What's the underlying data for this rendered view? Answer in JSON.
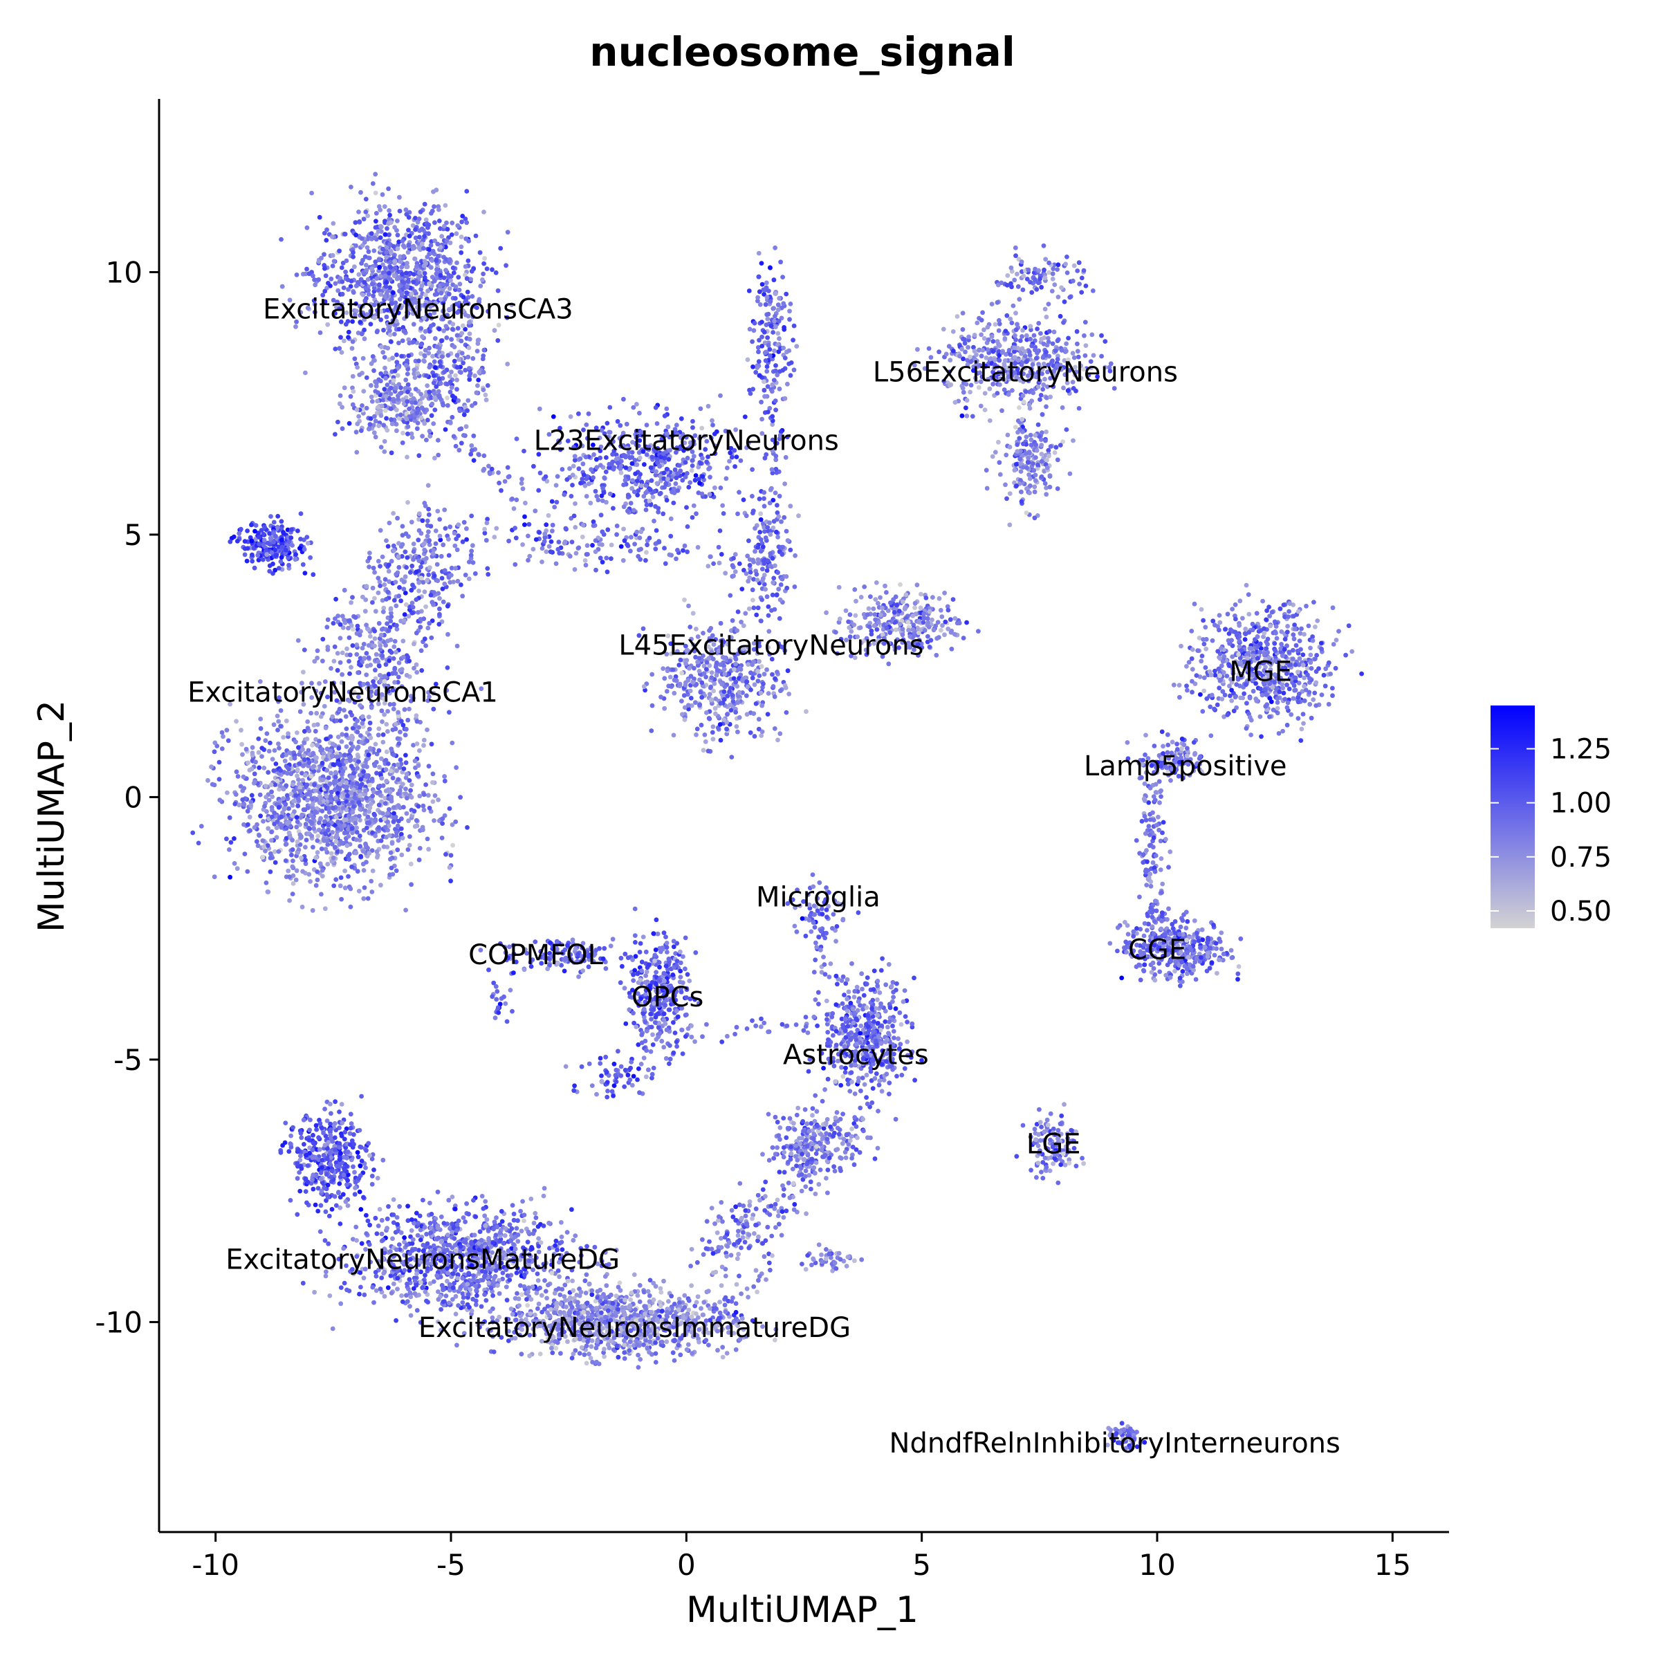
{
  "chart_data": {
    "type": "scatter",
    "title": "nucleosome_signal",
    "xlabel": "MultiUMAP_1",
    "ylabel": "MultiUMAP_2",
    "xlim": [
      -11.2,
      16.2
    ],
    "ylim": [
      -14.0,
      13.3
    ],
    "x_ticks": [
      -10,
      -5,
      0,
      5,
      10,
      15
    ],
    "y_ticks": [
      -10,
      -5,
      0,
      5,
      10
    ],
    "x_tick_labels": [
      "-10",
      "-5",
      "0",
      "5",
      "10",
      "15"
    ],
    "y_tick_labels": [
      "-10",
      "-5",
      "0",
      "5",
      "10"
    ],
    "grid": false,
    "color_scale": {
      "name": "",
      "low_color": "#d3d3d3",
      "high_color": "#0000ff",
      "min": 0.42,
      "max": 1.45,
      "ticks": [
        0.5,
        0.75,
        1.0,
        1.25
      ],
      "tick_labels": [
        "0.50",
        "0.75",
        "1.00",
        "1.25"
      ],
      "legend_position": "right"
    },
    "clusters": [
      {
        "label": "ExcitatoryNeuronsCA3",
        "label_x": -5.7,
        "label_y": 9.3,
        "blobs": [
          [
            -6.1,
            9.9,
            1.6,
            1.3,
            0.0,
            900,
            0.88
          ],
          [
            -6.2,
            7.5,
            0.9,
            0.7,
            0.0,
            250,
            0.8
          ],
          [
            -5.0,
            8.3,
            0.8,
            1.2,
            0.0,
            200,
            0.88
          ]
        ]
      },
      {
        "label": "ExcitatoryNeuronsCA1",
        "label_x": -7.3,
        "label_y": 2.0,
        "blobs": [
          [
            -7.5,
            0.0,
            1.9,
            1.4,
            0.0,
            1400,
            0.82
          ],
          [
            -6.6,
            2.6,
            1.1,
            1.3,
            0.5,
            300,
            0.85
          ],
          [
            -8.8,
            4.8,
            0.7,
            0.4,
            0.0,
            220,
            1.05
          ],
          [
            -5.6,
            4.4,
            1.2,
            0.9,
            0.6,
            260,
            0.9
          ]
        ]
      },
      {
        "label": "L23ExcitatoryNeurons",
        "label_x": 0.0,
        "label_y": 6.8,
        "blobs": [
          [
            -0.9,
            6.3,
            2.0,
            0.9,
            0.0,
            500,
            0.95
          ],
          [
            1.8,
            8.6,
            0.4,
            1.4,
            0.0,
            180,
            0.95
          ],
          [
            -2.3,
            4.8,
            1.6,
            0.4,
            0.0,
            90,
            0.95
          ]
        ]
      },
      {
        "label": "L45ExcitatoryNeurons",
        "label_x": 1.8,
        "label_y": 2.9,
        "blobs": [
          [
            0.7,
            2.2,
            1.2,
            1.0,
            0.0,
            420,
            0.85
          ],
          [
            1.7,
            4.5,
            0.5,
            0.9,
            0.0,
            120,
            0.9
          ],
          [
            4.5,
            3.3,
            1.1,
            0.6,
            0.0,
            280,
            0.82
          ]
        ]
      },
      {
        "label": "L56ExcitatoryNeurons",
        "label_x": 7.2,
        "label_y": 8.1,
        "blobs": [
          [
            7.0,
            8.3,
            1.4,
            0.8,
            0.0,
            450,
            0.85
          ],
          [
            7.3,
            6.4,
            0.6,
            0.8,
            0.0,
            180,
            0.8
          ],
          [
            7.5,
            9.9,
            0.9,
            0.4,
            0.0,
            90,
            0.88
          ]
        ]
      },
      {
        "label": "MGE",
        "label_x": 12.2,
        "label_y": 2.4,
        "blobs": [
          [
            12.3,
            2.5,
            1.3,
            1.0,
            0.0,
            600,
            0.88
          ]
        ]
      },
      {
        "label": "Lamp5positive",
        "label_x": 10.6,
        "label_y": 0.6,
        "blobs": [
          [
            10.3,
            0.7,
            0.7,
            0.4,
            0.0,
            120,
            0.88
          ],
          [
            9.9,
            -1.0,
            0.25,
            1.0,
            0.0,
            70,
            0.9
          ]
        ]
      },
      {
        "label": "CGE",
        "label_x": 10.0,
        "label_y": -2.9,
        "blobs": [
          [
            10.4,
            -2.9,
            1.0,
            0.5,
            0.0,
            350,
            0.9
          ]
        ]
      },
      {
        "label": "LGE",
        "label_x": 7.8,
        "label_y": -6.6,
        "blobs": [
          [
            7.8,
            -6.6,
            0.5,
            0.5,
            0.0,
            120,
            0.85
          ]
        ]
      },
      {
        "label": "Microglia",
        "label_x": 2.8,
        "label_y": -1.9,
        "blobs": [
          [
            2.8,
            -2.2,
            0.6,
            0.5,
            0.0,
            60,
            0.9
          ]
        ]
      },
      {
        "label": "Astrocytes",
        "label_x": 3.6,
        "label_y": -4.9,
        "blobs": [
          [
            3.8,
            -4.6,
            0.8,
            1.0,
            0.0,
            420,
            0.92
          ],
          [
            3.0,
            -6.5,
            0.8,
            0.5,
            0.0,
            150,
            0.85
          ]
        ]
      },
      {
        "label": "OPCs",
        "label_x": -0.4,
        "label_y": -3.8,
        "blobs": [
          [
            -0.6,
            -3.7,
            0.6,
            1.0,
            0.0,
            300,
            0.95
          ],
          [
            -1.5,
            -5.3,
            0.8,
            0.4,
            0.0,
            60,
            1.0
          ]
        ]
      },
      {
        "label": "COPMFOL",
        "label_x": -3.2,
        "label_y": -3.0,
        "blobs": [
          [
            -2.5,
            -3.0,
            1.3,
            0.3,
            0.0,
            120,
            0.95
          ],
          [
            -4.0,
            -3.9,
            0.2,
            0.4,
            0.0,
            20,
            1.0
          ]
        ]
      },
      {
        "label": "ExcitatoryNeuronsMatureDG",
        "label_x": -5.6,
        "label_y": -8.8,
        "blobs": [
          [
            -7.6,
            -6.9,
            0.8,
            0.8,
            0.0,
            350,
            1.0
          ],
          [
            -4.8,
            -8.8,
            2.2,
            0.9,
            0.0,
            900,
            0.92
          ]
        ]
      },
      {
        "label": "ExcitatoryNeuronsImmatureDG",
        "label_x": -1.1,
        "label_y": -10.1,
        "blobs": [
          [
            -1.5,
            -10.0,
            2.2,
            0.6,
            0.0,
            900,
            0.78
          ],
          [
            1.2,
            -8.2,
            1.0,
            0.5,
            0.7,
            120,
            0.85
          ],
          [
            2.4,
            -6.8,
            0.5,
            0.8,
            0.3,
            90,
            0.88
          ],
          [
            3.0,
            -8.8,
            0.5,
            0.2,
            0.0,
            40,
            0.8
          ]
        ]
      },
      {
        "label": "NdndfRelnInhibitoryInterneurons",
        "label_x": 9.1,
        "label_y": -12.3,
        "blobs": [
          [
            9.3,
            -12.2,
            0.35,
            0.25,
            0.0,
            60,
            0.9
          ]
        ]
      }
    ],
    "connectors": [
      [
        [
          -4.0,
          5.5
        ],
        [
          -1.5,
          5.0
        ],
        [
          0.5,
          4.6
        ],
        [
          1.6,
          4.2
        ],
        60
      ],
      [
        [
          -3.5,
          5.8
        ],
        [
          -4.5,
          6.5
        ],
        [
          -5.0,
          7.2
        ],
        40
      ],
      [
        [
          1.8,
          6.8
        ],
        [
          1.9,
          5.5
        ],
        [
          1.9,
          4.0
        ],
        40
      ],
      [
        [
          -0.8,
          -4.6
        ],
        [
          0.8,
          -4.4
        ],
        [
          2.5,
          -4.4
        ],
        [
          3.4,
          -4.4
        ],
        50
      ],
      [
        [
          0.3,
          -10.2
        ],
        [
          1.5,
          -9.3
        ],
        [
          2.3,
          -7.5
        ],
        [
          2.6,
          -6.2
        ],
        60
      ],
      [
        [
          2.6,
          -2.4
        ],
        [
          3.0,
          -3.2
        ],
        [
          3.5,
          -3.8
        ],
        30
      ],
      [
        [
          9.9,
          0.3
        ],
        [
          9.8,
          -1.5
        ],
        [
          9.9,
          -2.4
        ],
        40
      ]
    ]
  }
}
